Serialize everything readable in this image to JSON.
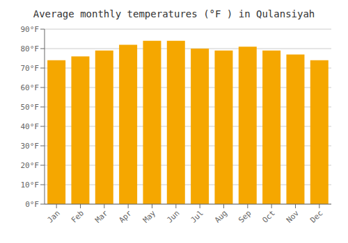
{
  "chart_data": {
    "type": "bar",
    "title": "Average monthly temperatures (°F ) in Qulansiyah",
    "categories": [
      "Jan",
      "Feb",
      "Mar",
      "Apr",
      "May",
      "Jun",
      "Jul",
      "Aug",
      "Sep",
      "Oct",
      "Nov",
      "Dec"
    ],
    "values": [
      74,
      76,
      79,
      82,
      84,
      84,
      80,
      79,
      81,
      79,
      77,
      74
    ],
    "color": "#F5A700",
    "ylim": [
      0,
      90
    ],
    "yticks": [
      {
        "value": 0,
        "label": "0°F"
      },
      {
        "value": 10,
        "label": "10°F"
      },
      {
        "value": 20,
        "label": "20°F"
      },
      {
        "value": 30,
        "label": "30°F"
      },
      {
        "value": 40,
        "label": "40°F"
      },
      {
        "value": 50,
        "label": "50°F"
      },
      {
        "value": 60,
        "label": "60°F"
      },
      {
        "value": 70,
        "label": "70°F"
      },
      {
        "value": 80,
        "label": "80°F"
      },
      {
        "value": 90,
        "label": "90°F"
      }
    ],
    "grid": true
  }
}
